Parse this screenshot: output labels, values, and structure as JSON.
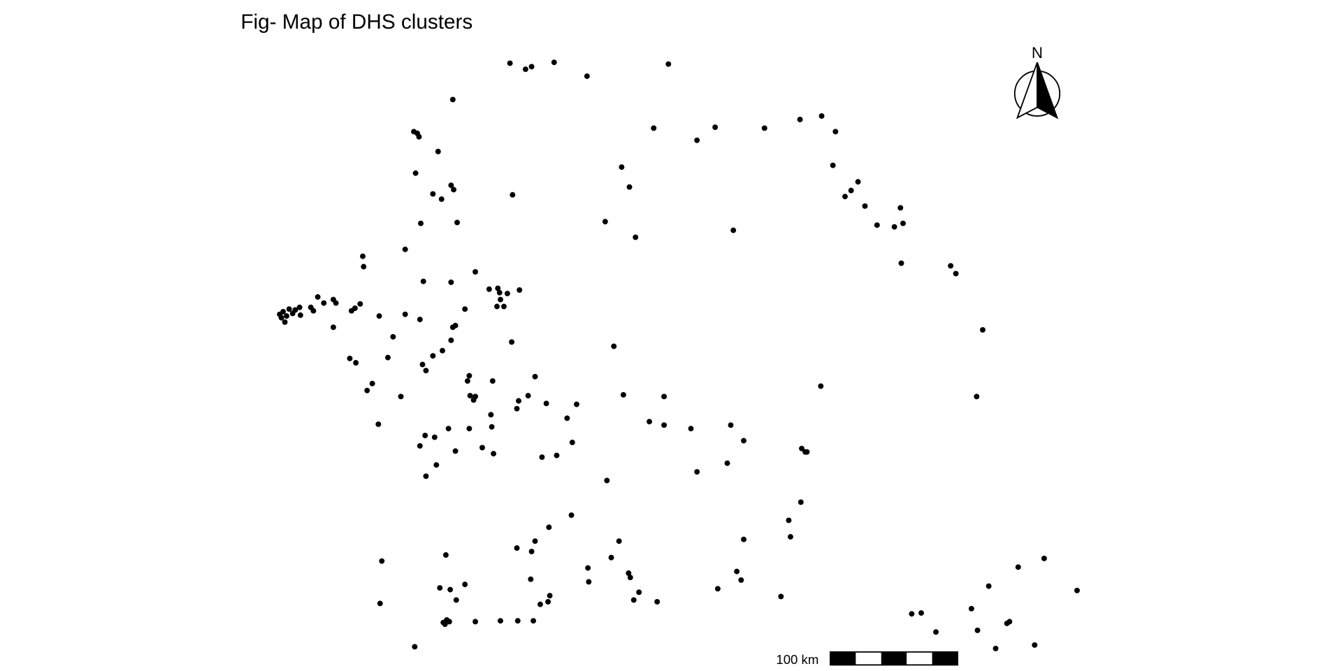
{
  "chart_data": {
    "type": "scatter",
    "title": "Fig- Map of DHS clusters",
    "north_label": "N",
    "scale_label": "100 km",
    "color": "#000000",
    "xlim": [
      0,
      1548
    ],
    "ylim": [
      775,
      0
    ],
    "x": [
      588,
      606,
      613,
      639,
      677,
      771,
      522,
      477,
      481,
      483,
      505,
      754,
      804,
      825,
      882,
      923,
      948,
      964,
      717,
      726,
      961,
      479,
      499,
      509,
      520,
      523,
      591,
      975,
      982,
      990,
      998,
      1039,
      1012,
      1032,
      1042,
      485,
      527,
      698,
      733,
      846,
      467,
      418,
      419,
      1040,
      1097,
      1103,
      548,
      488,
      520,
      564,
      574,
      576,
      585,
      599,
      577,
      573,
      581,
      366,
      384,
      373,
      387,
      358,
      345,
      340,
      333,
      326,
      322,
      330,
      337,
      346,
      324,
      328,
      361,
      415,
      409,
      405,
      536,
      437,
      467,
      484,
      525,
      522,
      520,
      384,
      453,
      1134,
      590,
      708,
      510,
      499,
      403,
      410,
      447,
      487,
      491,
      541,
      539,
      568,
      617,
      429,
      423,
      947,
      462,
      542,
      548,
      546,
      609,
      598,
      596,
      630,
      665,
      719,
      766,
      1127,
      566,
      654,
      436,
      749,
      766,
      797,
      843,
      541,
      517,
      567,
      490,
      501,
      858,
      484,
      556,
      525,
      569,
      625,
      642,
      660,
      925,
      929,
      931,
      839,
      503,
      491,
      804,
      700,
      924,
      659,
      633,
      910,
      912,
      617,
      714,
      858,
      596,
      613,
      514,
      440,
      705,
      1205,
      1175,
      678,
      725,
      727,
      850,
      612,
      679,
      855,
      507,
      519,
      536,
      1141,
      737,
      828,
      1243,
      634,
      526,
      632,
      623,
      731,
      758,
      901,
      438,
      1121,
      1052,
      1063,
      515,
      511,
      513,
      518,
      548,
      577,
      597,
      615,
      1162,
      1165,
      1128,
      1080,
      478,
      1149,
      1194
    ],
    "values": [
      73,
      80,
      77,
      72,
      88,
      74,
      115,
      152,
      154,
      158,
      175,
      148,
      162,
      147,
      148,
      138,
      134,
      152,
      193,
      216,
      191,
      200,
      224,
      230,
      214,
      219,
      225,
      227,
      220,
      210,
      238,
      240,
      260,
      262,
      258,
      258,
      257,
      256,
      274,
      266,
      288,
      296,
      308,
      304,
      307,
      316,
      314,
      325,
      326,
      334,
      333,
      338,
      339,
      335,
      346,
      354,
      354,
      343,
      346,
      350,
      350,
      355,
      355,
      358,
      357,
      360,
      363,
      365,
      362,
      364,
      367,
      372,
      359,
      351,
      356,
      359,
      357,
      365,
      363,
      369,
      376,
      378,
      393,
      378,
      389,
      381,
      395,
      400,
      405,
      411,
      414,
      419,
      413,
      421,
      428,
      434,
      440,
      440,
      435,
      443,
      451,
      446,
      458,
      457,
      458,
      462,
      457,
      463,
      472,
      466,
      467,
      456,
      458,
      458,
      479,
      483,
      490,
      487,
      491,
      495,
      491,
      495,
      495,
      493,
      503,
      505,
      509,
      515,
      517,
      521,
      524,
      528,
      526,
      511,
      518,
      522,
      522,
      535,
      537,
      550,
      545,
      555,
      580,
      595,
      609,
      601,
      620,
      625,
      625,
      623,
      633,
      637,
      641,
      648,
      644,
      645,
      655,
      656,
      662,
      667,
      660,
      669,
      672,
      670,
      679,
      681,
      675,
      677,
      684,
      680,
      682,
      688,
      693,
      695,
      698,
      693,
      695,
      689,
      697,
      703,
      709,
      708,
      716,
      719,
      721,
      718,
      718,
      717,
      717,
      717,
      720,
      718,
      728,
      730,
      747,
      749,
      745
    ]
  }
}
